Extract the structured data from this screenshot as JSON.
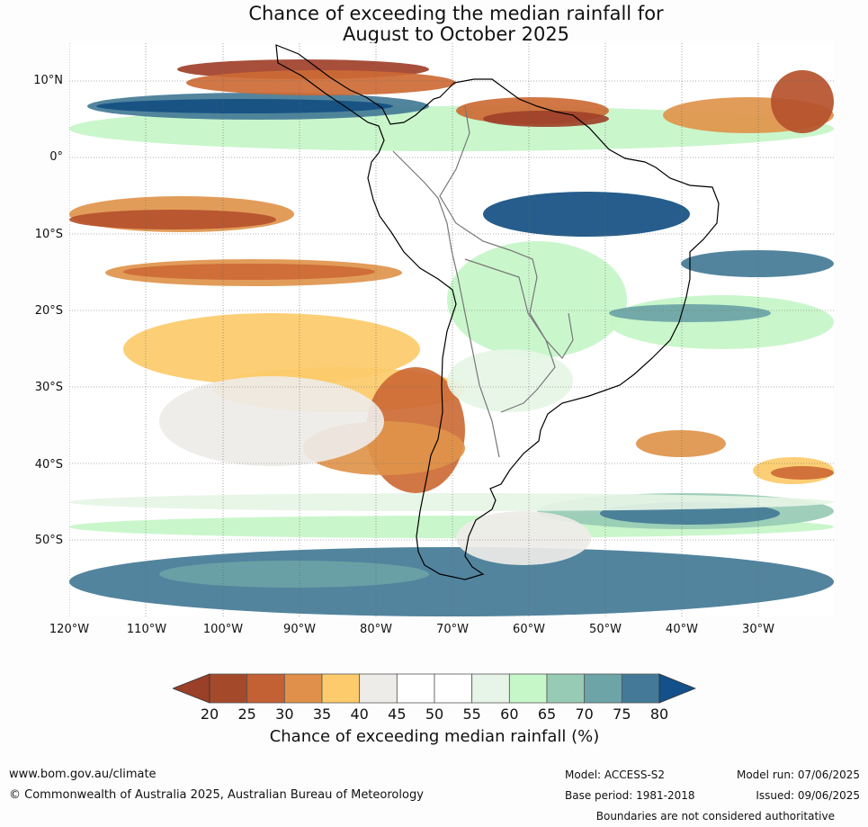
{
  "title": {
    "line1": "Chance of exceeding the median rainfall for",
    "line2": "August to October 2025"
  },
  "map": {
    "lat_labels": [
      "10°N",
      "0°",
      "10°S",
      "20°S",
      "30°S",
      "40°S",
      "50°S"
    ],
    "lon_labels": [
      "120°W",
      "110°W",
      "100°W",
      "90°W",
      "80°W",
      "70°W",
      "60°W",
      "50°W",
      "40°W",
      "30°W"
    ],
    "palette": {
      "20": "#a0402a",
      "25": "#b5512c",
      "30": "#cd6a35",
      "35": "#e0944b",
      "40": "#fccb6a",
      "45": "#eeece8",
      "50": "#ffffff",
      "55": "#ffffff",
      "60": "#e6f5e6",
      "65": "#c5f5c8",
      "70": "#97cbb4",
      "75": "#6ba3a6",
      "80": "#437a96",
      "85": "#144f82"
    }
  },
  "legend": {
    "ticks": [
      "20",
      "25",
      "30",
      "35",
      "40",
      "45",
      "50",
      "55",
      "60",
      "65",
      "70",
      "75",
      "80"
    ],
    "colors": [
      "#a44a2b",
      "#c36134",
      "#e0904a",
      "#fdcb6c",
      "#eeece8",
      "#ffffff",
      "#ffffff",
      "#e7f5e8",
      "#c6f7c9",
      "#98cbb5",
      "#6ca4a8",
      "#447a97"
    ],
    "low_color": "#9a3f28",
    "high_color": "#14508a",
    "title": "Chance of exceeding median rainfall (%)"
  },
  "footer": {
    "website": "www.bom.gov.au/climate",
    "copyright": "© Commonwealth of Australia 2025, Australian Bureau of Meteorology",
    "model": "Model: ACCESS-S2",
    "base_period": "Base period: 1981-2018",
    "model_run": "Model run: 07/06/2025",
    "issued": "Issued: 09/06/2025",
    "disclaimer": "Boundaries are not considered authoritative"
  }
}
